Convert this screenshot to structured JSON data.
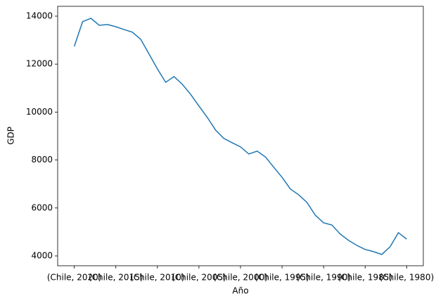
{
  "chart_data": {
    "type": "line",
    "x_label": "Año",
    "y_label": "GDP",
    "categories": [
      "(Chile, 2020)",
      null,
      null,
      null,
      null,
      "(Chile, 2015)",
      null,
      null,
      null,
      null,
      "(Chile, 2010)",
      null,
      null,
      null,
      null,
      "(Chile, 2005)",
      null,
      null,
      null,
      null,
      "(Chile, 2000)",
      null,
      null,
      null,
      null,
      "(Chile, 1995)",
      null,
      null,
      null,
      null,
      "(Chile, 1990)",
      null,
      null,
      null,
      null,
      "(Chile, 1985)",
      null,
      null,
      null,
      null,
      "(Chile, 1980)"
    ],
    "series": [
      {
        "name": "GDP",
        "color": "#1f77b4",
        "values": [
          12740,
          13770,
          13910,
          13620,
          13650,
          13560,
          13440,
          13330,
          13030,
          12420,
          11800,
          11240,
          11480,
          11160,
          10740,
          10250,
          9780,
          9250,
          8900,
          8720,
          8550,
          8250,
          8370,
          8130,
          7700,
          7280,
          6790,
          6550,
          6230,
          5700,
          5380,
          5290,
          4910,
          4650,
          4440,
          4270,
          4180,
          4060,
          4380,
          4970,
          4700
        ]
      }
    ],
    "ylim": [
      3590,
      14410
    ],
    "yticks": [
      4000,
      6000,
      8000,
      10000,
      12000,
      14000
    ],
    "grid": false
  }
}
